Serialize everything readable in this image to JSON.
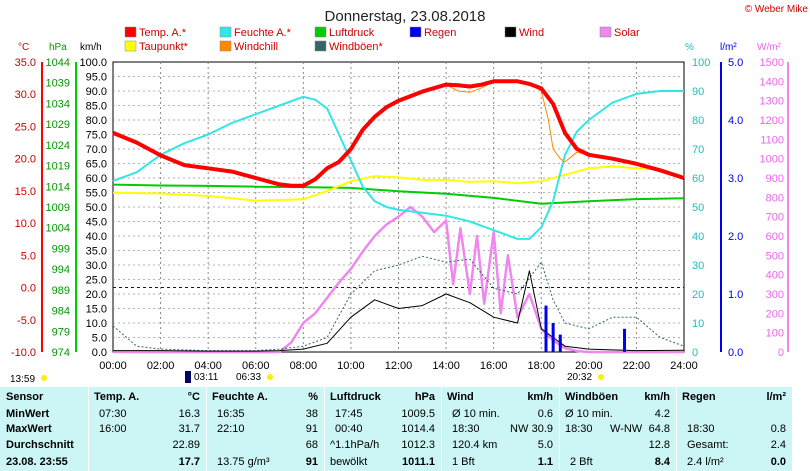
{
  "title": "Donnerstag, 23.08.2018",
  "copyright": "© Weber Mike",
  "axes": {
    "celsius_unit": "°C",
    "hpa_unit": "hPa",
    "kmh_unit": "km/h",
    "percent_unit": "%",
    "rain_unit": "l/m²",
    "solar_unit": "W/m²",
    "celsius_ticks": [
      "35.0",
      "30.0",
      "25.0",
      "20.0",
      "15.0",
      "10.0",
      "5.0",
      "0.0",
      "-5.0",
      "-10.0"
    ],
    "hpa_ticks": [
      "1044",
      "1039",
      "1034",
      "1029",
      "1024",
      "1019",
      "1014",
      "1009",
      "1004",
      "999",
      "994",
      "989",
      "984",
      "979",
      "974"
    ],
    "kmh_ticks": [
      "100.0",
      "95.0",
      "90.0",
      "85.0",
      "80.0",
      "75.0",
      "70.0",
      "65.0",
      "60.0",
      "55.0",
      "50.0",
      "45.0",
      "40.0",
      "35.0",
      "30.0",
      "25.0",
      "20.0",
      "15.0",
      "10.0",
      "5.0",
      "0.0"
    ],
    "percent_ticks": [
      "100",
      "90",
      "80",
      "70",
      "60",
      "50",
      "40",
      "30",
      "20",
      "10",
      "0"
    ],
    "rain_ticks": [
      "5.0",
      "4.0",
      "3.0",
      "2.0",
      "1.0",
      "0.0"
    ],
    "solar_ticks": [
      "1500",
      "1400",
      "1300",
      "1200",
      "1100",
      "1000",
      "900",
      "800",
      "700",
      "600",
      "500",
      "400",
      "300",
      "200",
      "100",
      "0"
    ],
    "x_ticks": [
      "00:00",
      "02:00",
      "04:00",
      "06:00",
      "08:00",
      "10:00",
      "12:00",
      "14:00",
      "16:00",
      "18:00",
      "20:00",
      "22:00",
      "24:00"
    ]
  },
  "legend": [
    {
      "label": "Temp. A.*",
      "color": "#ff0000"
    },
    {
      "label": "Feuchte A.*",
      "color": "#33e6e6"
    },
    {
      "label": "Luftdruck",
      "color": "#00cc00"
    },
    {
      "label": "Regen",
      "color": "#0000ee"
    },
    {
      "label": "Wind",
      "color": "#000000"
    },
    {
      "label": "Solar",
      "color": "#ee88ee"
    },
    {
      "label": "Taupunkt*",
      "color": "#ffff00"
    },
    {
      "label": "Windchill",
      "color": "#ff8800"
    },
    {
      "label": "Windböen*",
      "color": "#336666"
    }
  ],
  "sun": {
    "sunrise_left": "13:59",
    "moonrise": "03:11",
    "sunrise": "06:33",
    "sunset": "20:32"
  },
  "chart_data": {
    "type": "line",
    "x_unit": "hour of day",
    "x_range": [
      0,
      24
    ],
    "series": [
      {
        "name": "Temp. A.*",
        "axis": "°C",
        "ylim": [
          -10,
          35
        ],
        "color": "#ff0000",
        "x": [
          0,
          1,
          2,
          3,
          4,
          5,
          6,
          7,
          7.5,
          8,
          8.5,
          9,
          9.5,
          10,
          10.5,
          11,
          11.5,
          12,
          13,
          14,
          14.5,
          15,
          15.5,
          16,
          17,
          17.5,
          18,
          18.5,
          19,
          19.5,
          20,
          21,
          22,
          23,
          24
        ],
        "y": [
          24,
          22.5,
          20.5,
          19,
          18.5,
          18,
          17,
          16,
          15.8,
          15.8,
          16.8,
          18.5,
          19.5,
          21.5,
          24.5,
          26.5,
          28,
          29,
          30.4,
          31.5,
          31.4,
          31.2,
          31.5,
          32,
          32,
          31.6,
          30.9,
          28.5,
          24,
          21.5,
          20.6,
          20,
          19.2,
          18.2,
          17
        ]
      },
      {
        "name": "Taupunkt*",
        "axis": "°C",
        "ylim": [
          -10,
          35
        ],
        "color": "#ffff00",
        "x": [
          0,
          2,
          4,
          6,
          8,
          9,
          10,
          11,
          12,
          13,
          14,
          15,
          16,
          17,
          18,
          19,
          20,
          21,
          22,
          23,
          24
        ],
        "y": [
          14.7,
          14.6,
          14.2,
          13.5,
          13.7,
          15,
          16.5,
          17.3,
          17.1,
          16.7,
          16.7,
          16.4,
          16.5,
          16.2,
          16.5,
          17.5,
          18.5,
          18.8,
          18.5,
          18.3,
          17.2
        ]
      },
      {
        "name": "Windchill",
        "axis": "°C",
        "ylim": [
          -10,
          35
        ],
        "color": "#ff8800",
        "x": [
          14,
          14.5,
          15,
          15.5,
          16,
          17,
          17.5,
          18,
          18.3,
          18.5,
          18.8,
          19,
          19.5,
          20
        ],
        "y": [
          31.5,
          30.5,
          30.3,
          31,
          32,
          32,
          31.6,
          30.5,
          26,
          21.5,
          20,
          19.5,
          21,
          20.5
        ]
      },
      {
        "name": "Feuchte A.*",
        "axis": "%",
        "ylim": [
          0,
          100
        ],
        "color": "#33e6e6",
        "x": [
          0,
          1,
          2,
          3,
          4,
          5,
          6,
          7,
          8,
          8.5,
          9,
          9.5,
          10,
          10.5,
          11,
          11.5,
          12,
          13,
          14,
          15,
          16,
          17,
          17.5,
          18,
          18.5,
          19,
          19.5,
          20,
          21,
          22,
          23,
          24
        ],
        "y": [
          59,
          62,
          68,
          72,
          75,
          79,
          82,
          85,
          88,
          87,
          84,
          75,
          66,
          57,
          52,
          50,
          49,
          48,
          47,
          45,
          42,
          39,
          39,
          43,
          52,
          68,
          76,
          80,
          86,
          89,
          90,
          90
        ]
      },
      {
        "name": "Luftdruck",
        "axis": "hPa",
        "ylim": [
          974,
          1044
        ],
        "color": "#00cc00",
        "x": [
          0,
          2,
          4,
          6,
          8,
          10,
          12,
          14,
          16,
          18,
          20,
          22,
          24
        ],
        "y": [
          1014.4,
          1014.2,
          1014.1,
          1013.9,
          1013.8,
          1013.6,
          1012.8,
          1012.2,
          1011.2,
          1009.8,
          1010.4,
          1010.9,
          1011.1
        ]
      },
      {
        "name": "Solar",
        "axis": "W/m²",
        "ylim": [
          0,
          1500
        ],
        "color": "#ee88ee",
        "x": [
          0,
          7,
          7.5,
          8,
          8.5,
          9,
          9.5,
          10,
          10.5,
          11,
          11.5,
          12,
          12.5,
          13,
          13.5,
          14,
          14.3,
          14.6,
          15,
          15.3,
          15.6,
          16,
          16.3,
          16.6,
          17,
          17.5,
          18,
          18.5,
          19,
          19.5,
          20,
          24
        ],
        "y": [
          0,
          0,
          50,
          150,
          200,
          280,
          360,
          430,
          520,
          600,
          660,
          700,
          750,
          700,
          620,
          680,
          350,
          640,
          300,
          600,
          250,
          620,
          200,
          500,
          180,
          300,
          120,
          60,
          20,
          5,
          0,
          0
        ]
      },
      {
        "name": "Wind",
        "axis": "km/h",
        "ylim": [
          0,
          100
        ],
        "color": "#000000",
        "x": [
          0,
          2,
          4,
          6,
          7,
          8,
          9,
          10,
          11,
          12,
          13,
          14,
          15,
          16,
          17,
          17.5,
          18,
          18.5,
          19,
          20,
          22,
          24
        ],
        "y": [
          0.5,
          0.5,
          0.3,
          0.3,
          0.5,
          1,
          3,
          12,
          18,
          15,
          16,
          20,
          17,
          12,
          10,
          28,
          8,
          5,
          2,
          1,
          0.5,
          0.6
        ]
      },
      {
        "name": "Windböen*",
        "axis": "km/h",
        "ylim": [
          0,
          100
        ],
        "color": "#336666",
        "x": [
          0,
          1,
          2,
          4,
          6,
          7,
          8,
          9,
          10,
          11,
          12,
          13,
          14,
          15,
          16,
          17,
          18,
          18.5,
          19,
          20,
          21,
          22,
          23,
          24
        ],
        "y": [
          9,
          2,
          1,
          0.5,
          0.5,
          1,
          2,
          5,
          20,
          28,
          30,
          33,
          31,
          32,
          22,
          20,
          31,
          18,
          10,
          8,
          12,
          12,
          5,
          2
        ]
      },
      {
        "name": "Regen",
        "axis": "l/m²",
        "ylim": [
          0,
          5
        ],
        "color": "#0000ee",
        "x": [
          18.2,
          18.5,
          18.8,
          21.5
        ],
        "y": [
          0.8,
          0.5,
          0.3,
          0.4
        ]
      }
    ]
  },
  "stats": {
    "sensor": {
      "title": "Sensor",
      "min": "MinWert",
      "max": "MaxWert",
      "avg": "Durchschnitt",
      "current": "23.08. 23:55"
    },
    "temp": {
      "title": "Temp. A.",
      "unit": "°C",
      "min_time": "07:30",
      "min": "16.3",
      "max_time": "16:00",
      "max": "31.7",
      "avg": "22.89",
      "current": "17.7"
    },
    "feuchte": {
      "title": "Feuchte A.",
      "unit": "%",
      "min_time": "16:35",
      "min": "38",
      "max_time": "22:10",
      "max": "91",
      "avg": "68",
      "current_label": "13.75 g/m³",
      "current": "91"
    },
    "luftdruck": {
      "title": "Luftdruck",
      "unit": "hPa",
      "min_time": "17:45",
      "min": "1009.5",
      "max_time": "00:40",
      "max": "1014.4",
      "avg_label": "^1.1hPa/h",
      "avg": "1012.3",
      "current_label": "bewölkt",
      "current": "1011.1"
    },
    "wind": {
      "title": "Wind",
      "unit": "km/h",
      "min_label": "Ø 10 min.",
      "min": "0.6",
      "max_time": "18:30",
      "max_dir": "NW",
      "max": "30.9",
      "avg_label": "120.4 km",
      "avg": "5.0",
      "current_label": "1 Bft",
      "current": "1.1"
    },
    "boeen": {
      "title": "Windböen",
      "unit": "km/h",
      "min_label": "Ø 10 min.",
      "min": "4.2",
      "max_time": "18:30",
      "max_dir": "W-NW",
      "max": "64.8",
      "avg": "12.8",
      "current_label": "2 Bft",
      "current": "8.4"
    },
    "regen": {
      "title": "Regen",
      "unit": "l/m²",
      "max_time": "18:30",
      "max": "0.8",
      "avg_label": "Gesamt:",
      "avg": "2.4",
      "current_label": "2.4 l/m²",
      "current": "0.0"
    }
  }
}
